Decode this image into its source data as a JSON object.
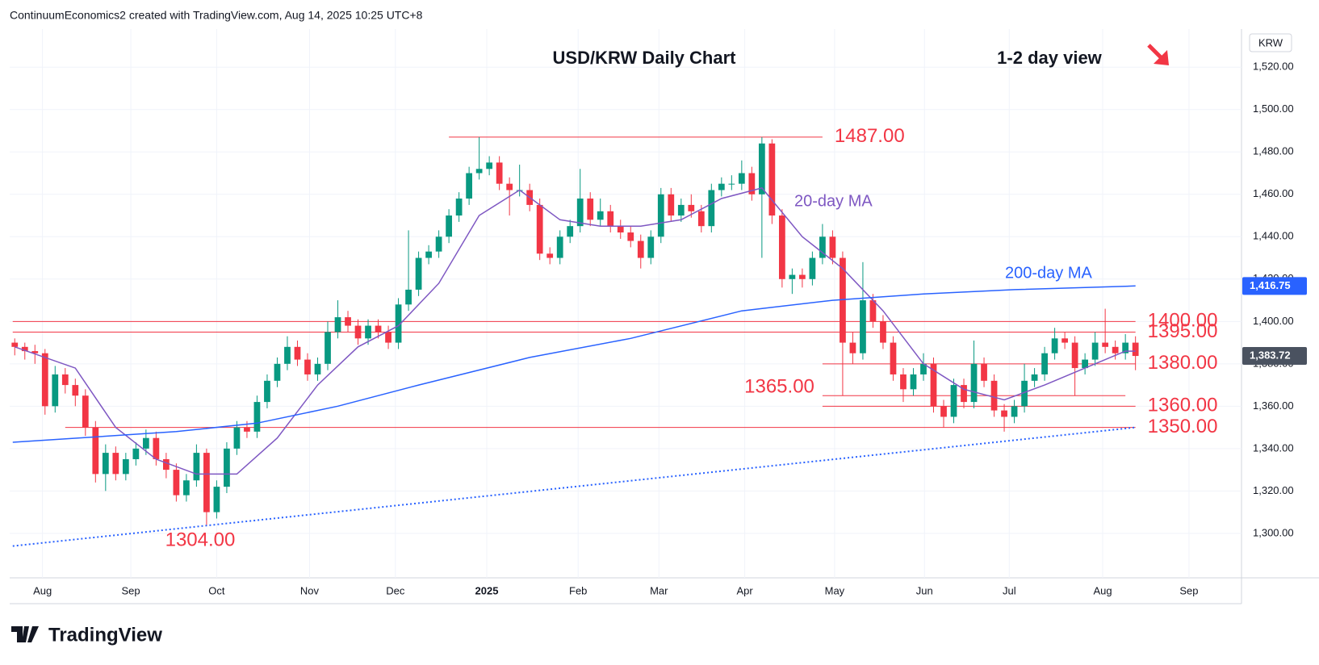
{
  "header": {
    "credit": "ContinuumEconomics2 created with TradingView.com, Aug 14, 2025 10:25 UTC+8",
    "logo": "TradingView"
  },
  "chart_data": {
    "type": "candlestick",
    "title": "USD/KRW Daily Chart",
    "subtitle": "1-2 day view",
    "currency": "KRW",
    "grid": true,
    "up_color": "#089981",
    "down_color": "#f23645",
    "xlim": [
      -0.5,
      121.5
    ],
    "xticks": [
      {
        "value": 2.75,
        "label": "Aug"
      },
      {
        "value": 11.5,
        "label": "Sep"
      },
      {
        "value": 20,
        "label": "Oct"
      },
      {
        "value": 29.2,
        "label": "Nov"
      },
      {
        "value": 37.7,
        "label": "Dec"
      },
      {
        "value": 46.75,
        "label": "2025"
      },
      {
        "value": 55.8,
        "label": "Feb"
      },
      {
        "value": 63.8,
        "label": "Mar"
      },
      {
        "value": 72.3,
        "label": "Apr"
      },
      {
        "value": 81.2,
        "label": "May"
      },
      {
        "value": 90.1,
        "label": "Jun"
      },
      {
        "value": 98.5,
        "label": "Jul"
      },
      {
        "value": 107.75,
        "label": "Aug"
      },
      {
        "value": 116.3,
        "label": "Sep"
      }
    ],
    "ylim": [
      1279,
      1538
    ],
    "yticks": [
      {
        "value": 1300,
        "label": "1,300.00"
      },
      {
        "value": 1320,
        "label": "1,320.00"
      },
      {
        "value": 1340,
        "label": "1,340.00"
      },
      {
        "value": 1360,
        "label": "1,360.00"
      },
      {
        "value": 1380,
        "label": "1,380.00"
      },
      {
        "value": 1400,
        "label": "1,400.00"
      },
      {
        "value": 1420,
        "label": "1,420.00"
      },
      {
        "value": 1440,
        "label": "1,440.00"
      },
      {
        "value": 1460,
        "label": "1,460.00"
      },
      {
        "value": 1480,
        "label": "1,480.00"
      },
      {
        "value": 1500,
        "label": "1,500.00"
      },
      {
        "value": 1520,
        "label": "1,520.00"
      }
    ],
    "candles": [
      [
        1390,
        1392,
        1384,
        1388
      ],
      [
        1388,
        1390,
        1382,
        1386
      ],
      [
        1386,
        1389,
        1380,
        1385
      ],
      [
        1385,
        1387,
        1356,
        1360
      ],
      [
        1360,
        1379,
        1357,
        1375
      ],
      [
        1375,
        1378,
        1366,
        1370
      ],
      [
        1370,
        1373,
        1360,
        1365
      ],
      [
        1365,
        1368,
        1346,
        1350
      ],
      [
        1350,
        1353,
        1324,
        1328
      ],
      [
        1328,
        1342,
        1320,
        1338
      ],
      [
        1338,
        1341,
        1325,
        1328
      ],
      [
        1328,
        1338,
        1325,
        1335
      ],
      [
        1335,
        1343,
        1332,
        1340
      ],
      [
        1340,
        1349,
        1337,
        1345
      ],
      [
        1345,
        1348,
        1332,
        1335
      ],
      [
        1335,
        1338,
        1326,
        1330
      ],
      [
        1330,
        1333,
        1315,
        1318
      ],
      [
        1318,
        1328,
        1315,
        1325
      ],
      [
        1325,
        1342,
        1322,
        1338
      ],
      [
        1338,
        1340,
        1304,
        1310
      ],
      [
        1310,
        1325,
        1307,
        1322
      ],
      [
        1322,
        1343,
        1319,
        1340
      ],
      [
        1340,
        1353,
        1337,
        1350
      ],
      [
        1350,
        1353,
        1345,
        1348
      ],
      [
        1348,
        1365,
        1345,
        1362
      ],
      [
        1362,
        1375,
        1359,
        1372
      ],
      [
        1372,
        1383,
        1369,
        1380
      ],
      [
        1380,
        1393,
        1377,
        1388
      ],
      [
        1388,
        1391,
        1379,
        1382
      ],
      [
        1382,
        1385,
        1372,
        1375
      ],
      [
        1375,
        1383,
        1372,
        1380
      ],
      [
        1380,
        1400,
        1377,
        1395
      ],
      [
        1395,
        1410,
        1392,
        1402
      ],
      [
        1402,
        1405,
        1395,
        1398
      ],
      [
        1398,
        1401,
        1389,
        1392
      ],
      [
        1392,
        1401,
        1389,
        1398
      ],
      [
        1398,
        1401,
        1392,
        1395
      ],
      [
        1395,
        1398,
        1387,
        1390
      ],
      [
        1390,
        1411,
        1387,
        1408
      ],
      [
        1408,
        1443,
        1405,
        1415
      ],
      [
        1415,
        1433,
        1412,
        1430
      ],
      [
        1430,
        1436,
        1427,
        1433
      ],
      [
        1433,
        1443,
        1430,
        1440
      ],
      [
        1440,
        1453,
        1437,
        1450
      ],
      [
        1450,
        1461,
        1447,
        1458
      ],
      [
        1458,
        1473,
        1455,
        1470
      ],
      [
        1470,
        1487,
        1467,
        1472
      ],
      [
        1472,
        1478,
        1469,
        1475
      ],
      [
        1475,
        1478,
        1462,
        1465
      ],
      [
        1465,
        1468,
        1450,
        1462
      ],
      [
        1462,
        1474,
        1459,
        1462
      ],
      [
        1462,
        1465,
        1452,
        1455
      ],
      [
        1455,
        1458,
        1429,
        1432
      ],
      [
        1432,
        1435,
        1427,
        1430
      ],
      [
        1430,
        1443,
        1427,
        1440
      ],
      [
        1440,
        1448,
        1437,
        1445
      ],
      [
        1445,
        1472,
        1442,
        1458
      ],
      [
        1458,
        1461,
        1445,
        1448
      ],
      [
        1448,
        1458,
        1445,
        1452
      ],
      [
        1452,
        1455,
        1442,
        1445
      ],
      [
        1445,
        1448,
        1439,
        1442
      ],
      [
        1442,
        1445,
        1435,
        1438
      ],
      [
        1438,
        1441,
        1425,
        1430
      ],
      [
        1430,
        1443,
        1427,
        1440
      ],
      [
        1440,
        1463,
        1437,
        1460
      ],
      [
        1460,
        1463,
        1447,
        1450
      ],
      [
        1450,
        1458,
        1447,
        1455
      ],
      [
        1455,
        1460,
        1449,
        1452
      ],
      [
        1452,
        1455,
        1442,
        1445
      ],
      [
        1445,
        1465,
        1442,
        1462
      ],
      [
        1462,
        1468,
        1459,
        1465
      ],
      [
        1465,
        1469,
        1462,
        1465
      ],
      [
        1465,
        1476,
        1462,
        1470
      ],
      [
        1470,
        1473,
        1457,
        1460
      ],
      [
        1460,
        1487,
        1430,
        1484
      ],
      [
        1484,
        1486,
        1446,
        1450
      ],
      [
        1450,
        1453,
        1416,
        1420
      ],
      [
        1420,
        1425,
        1413,
        1422
      ],
      [
        1422,
        1425,
        1416,
        1420
      ],
      [
        1420,
        1433,
        1417,
        1430
      ],
      [
        1430,
        1446,
        1427,
        1440
      ],
      [
        1440,
        1443,
        1427,
        1430
      ],
      [
        1430,
        1433,
        1365,
        1390
      ],
      [
        1390,
        1395,
        1380,
        1385
      ],
      [
        1385,
        1428,
        1382,
        1410
      ],
      [
        1410,
        1413,
        1397,
        1400
      ],
      [
        1400,
        1403,
        1387,
        1390
      ],
      [
        1390,
        1393,
        1372,
        1375
      ],
      [
        1375,
        1378,
        1362,
        1368
      ],
      [
        1368,
        1378,
        1365,
        1375
      ],
      [
        1375,
        1385,
        1372,
        1380
      ],
      [
        1380,
        1383,
        1357,
        1360
      ],
      [
        1360,
        1363,
        1350,
        1355
      ],
      [
        1355,
        1373,
        1352,
        1370
      ],
      [
        1370,
        1373,
        1359,
        1362
      ],
      [
        1362,
        1391,
        1359,
        1380
      ],
      [
        1380,
        1383,
        1369,
        1372
      ],
      [
        1372,
        1375,
        1355,
        1358
      ],
      [
        1358,
        1361,
        1348,
        1355
      ],
      [
        1355,
        1363,
        1352,
        1360
      ],
      [
        1360,
        1380,
        1357,
        1372
      ],
      [
        1372,
        1378,
        1369,
        1375
      ],
      [
        1375,
        1388,
        1372,
        1385
      ],
      [
        1385,
        1397,
        1382,
        1392
      ],
      [
        1392,
        1395,
        1387,
        1390
      ],
      [
        1390,
        1393,
        1365,
        1378
      ],
      [
        1378,
        1385,
        1375,
        1382
      ],
      [
        1382,
        1395,
        1379,
        1390
      ],
      [
        1390,
        1406,
        1385,
        1388
      ],
      [
        1388,
        1391,
        1382,
        1385
      ],
      [
        1385,
        1394,
        1382,
        1390
      ],
      [
        1390,
        1393,
        1377,
        1383.72
      ]
    ],
    "lines": [
      {
        "name": "20-day MA",
        "color": "#7e57c2",
        "x": [
          0,
          6,
          10,
          14,
          18,
          22,
          26,
          30,
          34,
          38,
          42,
          46,
          50,
          54,
          58,
          62,
          66,
          70,
          74,
          78,
          82,
          86,
          90,
          94,
          98,
          102,
          106,
          110,
          111
        ],
        "values": [
          1388,
          1378,
          1350,
          1335,
          1328,
          1328,
          1345,
          1370,
          1388,
          1398,
          1418,
          1450,
          1462,
          1448,
          1445,
          1445,
          1448,
          1458,
          1463,
          1440,
          1425,
          1405,
          1380,
          1368,
          1363,
          1370,
          1378,
          1386,
          1386
        ]
      },
      {
        "name": "200-day MA",
        "color": "#2962ff",
        "x": [
          -0.2,
          16,
          24,
          32,
          40,
          51,
          61,
          72,
          81,
          90,
          99,
          111
        ],
        "values": [
          1343,
          1348,
          1352,
          1360,
          1370,
          1383,
          1392,
          1405,
          1410,
          1413,
          1415,
          1416.75
        ]
      }
    ],
    "trendline": {
      "color": "#2962ff",
      "x": [
        -0.2,
        111
      ],
      "values": [
        1294,
        1350
      ]
    },
    "levels": [
      {
        "value": 1487,
        "label": "1487.00",
        "x": [
          43,
          80
        ],
        "label_position": "right"
      },
      {
        "value": 1400,
        "label": "1400.00",
        "x": [
          -0.2,
          111
        ],
        "label_position": "right"
      },
      {
        "value": 1395,
        "label": "1395.00",
        "x": [
          -0.2,
          111
        ],
        "label_position": "right"
      },
      {
        "value": 1380,
        "label": "1380.00",
        "x": [
          80,
          111
        ],
        "label_position": "right"
      },
      {
        "value": 1365,
        "label": "1365.00",
        "x": [
          80,
          110
        ],
        "label_position": "left"
      },
      {
        "value": 1360,
        "label": "1360.00",
        "x": [
          80,
          111
        ],
        "label_position": "right"
      },
      {
        "value": 1350,
        "label": "1350.00",
        "x": [
          5,
          111
        ],
        "label_position": "right"
      }
    ],
    "low_annotation": "1304.00",
    "price_tags": [
      {
        "value": 1416.75,
        "label": "1,416.75",
        "color": "#2962ff"
      },
      {
        "value": 1383.72,
        "label": "1,383.72",
        "color": "#4a5260"
      }
    ]
  }
}
